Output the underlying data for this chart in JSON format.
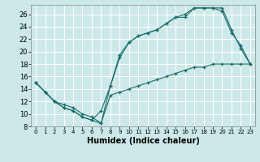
{
  "xlabel": "Humidex (Indice chaleur)",
  "bg_color": "#cce8e8",
  "grid_color": "#ffffff",
  "line_color": "#1a6b6b",
  "xlim": [
    -0.5,
    23.5
  ],
  "ylim": [
    8,
    27.5
  ],
  "xticks": [
    0,
    1,
    2,
    3,
    4,
    5,
    6,
    7,
    8,
    9,
    10,
    11,
    12,
    13,
    14,
    15,
    16,
    17,
    18,
    19,
    20,
    21,
    22,
    23
  ],
  "yticks": [
    8,
    10,
    12,
    14,
    16,
    18,
    20,
    22,
    24,
    26
  ],
  "line1_x": [
    0,
    1,
    2,
    3,
    4,
    5,
    6,
    7,
    8,
    9,
    10,
    11,
    12,
    13,
    14,
    15,
    16,
    17,
    18,
    19,
    20,
    21,
    22,
    23
  ],
  "line1_y": [
    15,
    13.5,
    12,
    11,
    10.5,
    9.5,
    9,
    8.5,
    14.5,
    19,
    21.5,
    22.5,
    23,
    23.5,
    24.5,
    25.5,
    25.5,
    27,
    27,
    27,
    27,
    23.5,
    20.5,
    18
  ],
  "line2_x": [
    0,
    1,
    2,
    3,
    4,
    5,
    6,
    7,
    8,
    9,
    10,
    11,
    12,
    13,
    14,
    15,
    16,
    17,
    18,
    19,
    20,
    21,
    22,
    23
  ],
  "line2_y": [
    15,
    13.5,
    12,
    11,
    10.5,
    9.5,
    9,
    10.5,
    14.5,
    19.5,
    21.5,
    22.5,
    23,
    23.5,
    24.5,
    25.5,
    26,
    27,
    27,
    27,
    26.5,
    23,
    21,
    18
  ],
  "line3_x": [
    0,
    1,
    2,
    3,
    4,
    5,
    6,
    7,
    8,
    9,
    10,
    11,
    12,
    13,
    14,
    15,
    16,
    17,
    18,
    19,
    20,
    21,
    22,
    23
  ],
  "line3_y": [
    15,
    13.5,
    12,
    11.5,
    11,
    10,
    9.5,
    8.5,
    13,
    13.5,
    14,
    14.5,
    15,
    15.5,
    16,
    16.5,
    17,
    17.5,
    17.5,
    18,
    18,
    18,
    18,
    18
  ]
}
